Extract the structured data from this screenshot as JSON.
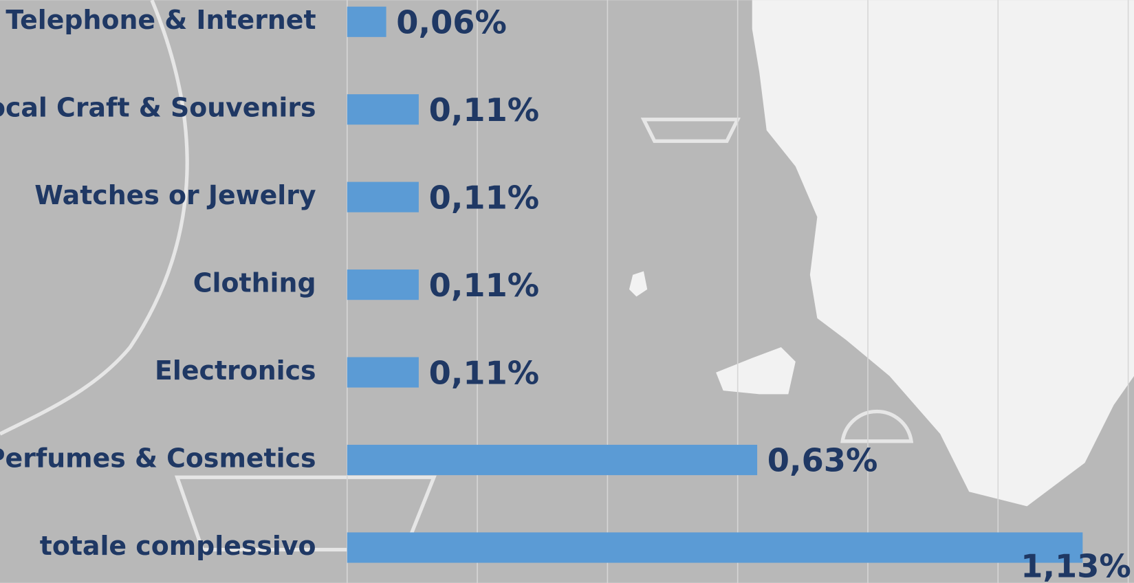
{
  "chart_data": {
    "type": "bar",
    "orientation": "horizontal",
    "categories": [
      "Telephone & Internet",
      "Local Craft & Souvenirs",
      "Watches or Jewelry",
      "Clothing",
      "Electronics",
      "Perfumes & Cosmetics",
      "totale complessivo"
    ],
    "values": [
      0.06,
      0.11,
      0.11,
      0.11,
      0.11,
      0.63,
      1.13
    ],
    "value_labels": [
      "0,06%",
      "0,11%",
      "0,11%",
      "0,11%",
      "0,11%",
      "0,63%",
      "1,13%"
    ],
    "color": "#5b9bd5",
    "xlim": [
      0,
      1.2
    ],
    "xticks": [
      0,
      0.2,
      0.4,
      0.6,
      0.8,
      1,
      1.2
    ],
    "grid": true
  }
}
